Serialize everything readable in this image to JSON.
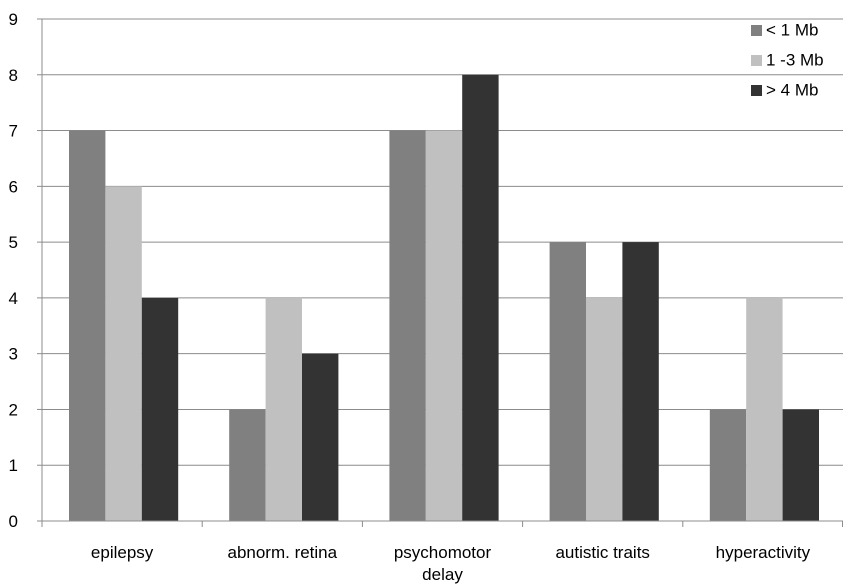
{
  "chart_data": {
    "type": "bar",
    "categories": [
      [
        "epilepsy"
      ],
      [
        "abnorm. retina"
      ],
      [
        "psychomotor",
        "delay"
      ],
      [
        "autistic traits"
      ],
      [
        "hyperactivity"
      ]
    ],
    "series": [
      {
        "name": "< 1 Mb",
        "color": "#808080",
        "values": [
          7,
          2,
          7,
          5,
          2
        ]
      },
      {
        "name": "1 -3 Mb",
        "color": "#c0c0c0",
        "values": [
          6,
          4,
          7,
          4,
          4
        ]
      },
      {
        "name": "> 4 Mb",
        "color": "#333333",
        "values": [
          4,
          3,
          8,
          5,
          2
        ]
      }
    ],
    "ylim": [
      0,
      9
    ],
    "yticks": [
      0,
      1,
      2,
      3,
      4,
      5,
      6,
      7,
      8,
      9
    ],
    "grid": true,
    "legend_position": "top-right",
    "title": "",
    "xlabel": "",
    "ylabel": ""
  }
}
